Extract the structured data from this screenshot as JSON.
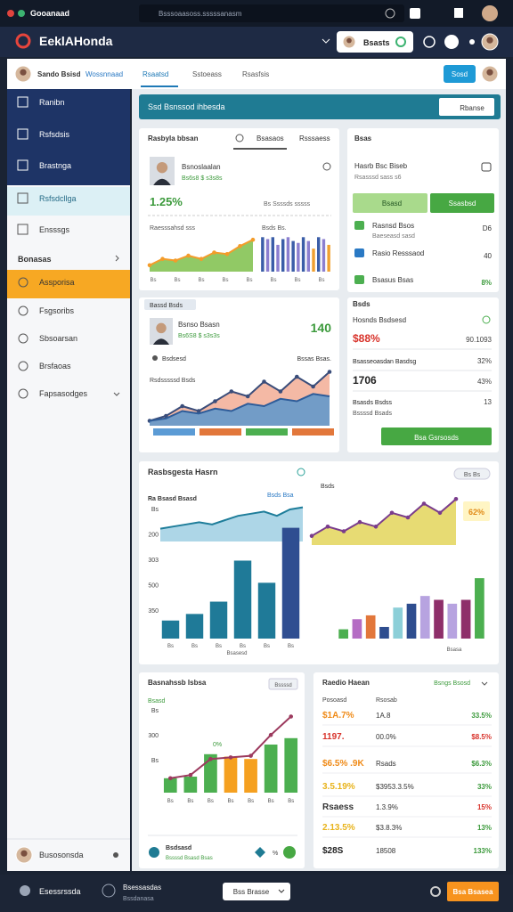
{
  "browser": {
    "tab": "Gooanaad",
    "url": "Bsssoaasoss.sssssanasm"
  },
  "header": {
    "logo": "EeklAHonda",
    "button": "Bsasts"
  },
  "subheader": {
    "user": "Sando Bsisd",
    "user_tag": "Wossnnaad",
    "tabs": [
      "Rsaatsd",
      "Sstoeass",
      "Rsasfsis"
    ],
    "button": "Sosd"
  },
  "sidebar": {
    "items": [
      "Ranibn",
      "Rsfsdsis",
      "Brastnga",
      "Rsfsdcllga",
      "Ensssgs"
    ],
    "section": "Bonasas",
    "sub_items": [
      "Assporisa",
      "Fsgsoribs",
      "Sbsoarsan",
      "Brsfaoas",
      "Fapsasodges"
    ],
    "user": "Busosonsda"
  },
  "search": {
    "text": "Ssd Bsnssod ihbesda",
    "button": "Rbanse"
  },
  "card1": {
    "title": "Rasbyla bbsan",
    "tabs": [
      "Bsasaos",
      "Rsssaess"
    ],
    "name": "Bsnoslaalan",
    "sub": "Bs6s8 $ s3s8s",
    "stat": "1.25%",
    "meta": "Bs Ssssds sssss",
    "chart_label": "Raesssahsd sss",
    "bar_label": "Bsds Bs.",
    "x_labels": [
      "Bs",
      "Bs",
      "Bs",
      "Bs",
      "Bs",
      "Bs",
      "Bs",
      "Bs"
    ],
    "line_chart": {
      "values": [
        2,
        4,
        3.5,
        5,
        4,
        6,
        5.5,
        8,
        10
      ],
      "ylim": [
        0,
        12
      ],
      "color": "#f39c2b",
      "fill": "#7ec04a"
    },
    "bar_chart": {
      "values": [
        9,
        8.5,
        9,
        7,
        8.5,
        9,
        8,
        7.5,
        9,
        8,
        6,
        9,
        8.5,
        7
      ],
      "ylim": [
        0,
        10
      ],
      "colors": [
        "#3b5ea8",
        "#8c7fd0",
        "#3b5ea8",
        "#8c7fd0",
        "#3b5ea8",
        "#8c7fd0",
        "#3b5ea8",
        "#8c7fd0",
        "#3b5ea8",
        "#8c7fd0",
        "#f0a030",
        "#3b5ea8",
        "#8c7fd0",
        "#f0a030"
      ]
    }
  },
  "side1": {
    "title": "Bsas",
    "heading": "Hasrb Bsc Biseb",
    "sub": "Rsasssd sass s6",
    "buttons": [
      "Bsasd",
      "Ssasbsd"
    ],
    "items": [
      {
        "label": "Rasnsd Bsos",
        "sub": "Baeseasd sasd",
        "value": "D6"
      },
      {
        "label": "Rasio Resssaod",
        "value": "40"
      },
      {
        "label": "Bsasus Bsas",
        "value": "8%"
      }
    ]
  },
  "card2": {
    "tab": "Bassd Bsds",
    "name": "Bsnso Bsasn",
    "sub": "Bs6S8 $ s3s3s",
    "stat": "140",
    "label_left": "Bsdsesd",
    "label_right": "Bssas Bsas.",
    "chart_label": "Rsdsssssd Bsds",
    "area_chart": {
      "ylim": [
        0,
        12
      ],
      "series": [
        {
          "values": [
            1,
            2,
            4,
            3,
            5,
            7,
            6,
            9,
            7,
            10,
            8,
            11
          ],
          "color": "#3a4d7a",
          "fill": "#f2ad95"
        },
        {
          "values": [
            1,
            1.5,
            3,
            2.5,
            3.5,
            3,
            4.5,
            4,
            5.5,
            5,
            6.5,
            6
          ],
          "color": "#2e5c99",
          "fill": "#5a96cc"
        }
      ]
    },
    "legend_colors": [
      "#5b9bd5",
      "#e2773b",
      "#4caf50",
      "#e2773b"
    ]
  },
  "side2": {
    "title": "Bsds",
    "heading": "Hosnds Bsdsesd",
    "rows": [
      [
        "$88%",
        "90.1093"
      ],
      [
        "Bsasseoasdan Basdsg",
        "32%"
      ],
      [
        "1706",
        "43%"
      ],
      [
        "Bsasds Bsdss",
        "13"
      ]
    ],
    "row_sub": "Bssssd Bsads",
    "button": "Bsa Gsrsosds"
  },
  "card3": {
    "title": "Rasbsgesta Hasrn",
    "left_title": "Ra Bsasd Bsasd",
    "left_tag": "Bsds Bsa",
    "y_labels": [
      "Bs",
      "200",
      "303",
      "500",
      "350"
    ],
    "x_labels": [
      "Bs",
      "Bs",
      "Bs",
      "Bs",
      "Bs",
      "Bs"
    ],
    "x_caption": "Bsasesd",
    "line": {
      "values": [
        3,
        3.5,
        4,
        4.5,
        4,
        5,
        6,
        6.5,
        7,
        6,
        7.5,
        8
      ],
      "ylim": [
        0,
        10
      ],
      "color": "#1e7d9a",
      "fill": "#9fcfe3"
    },
    "bars": {
      "values": [
        22,
        30,
        45,
        95,
        68,
        135
      ],
      "ylim": [
        0,
        140
      ],
      "colors": [
        "#1f7a98",
        "#1f7a98",
        "#1f7a98",
        "#1f7a98",
        "#1f7a98",
        "#2f4e91"
      ]
    },
    "right_title": "Bsds",
    "right_stat": "62%",
    "right_caption": "Bsasa",
    "bar_tag": "Bs Bs",
    "right_line": {
      "values": [
        2,
        4,
        3,
        5,
        4,
        7,
        6,
        9,
        7,
        10
      ],
      "ylim": [
        0,
        12
      ],
      "color": "#7a3c8c",
      "fill": "#e3d55a"
    },
    "right_bars": {
      "values": [
        12,
        25,
        30,
        15,
        40,
        45,
        55,
        50,
        45,
        50,
        78
      ],
      "ylim": [
        0,
        100
      ],
      "colors": [
        "#4caf50",
        "#b56cc4",
        "#e2773b",
        "#2e4d8f",
        "#8ccfd8",
        "#2e4d8f",
        "#b7a3e0",
        "#8e2f6a",
        "#b7a3e0",
        "#8e2f6a",
        "#4caf50"
      ]
    }
  },
  "card4": {
    "title": "Basnahssb Isbsa",
    "tag": "Bssssd",
    "chart_label": "Bsasd",
    "y_labels": [
      "Bs",
      "300",
      "Bs"
    ],
    "x_labels": [
      "Bs",
      "Bs",
      "Bs",
      "Bs",
      "Bs",
      "Bs",
      "Bs"
    ],
    "bar_label": "0%",
    "bars": {
      "values": [
        18,
        20,
        48,
        45,
        42,
        60,
        68
      ],
      "ylim": [
        0,
        100
      ],
      "colors": [
        "#4caf50",
        "#4caf50",
        "#4caf50",
        "#f5a020",
        "#f5a020",
        "#4caf50",
        "#4caf50"
      ]
    },
    "line": {
      "values": [
        18,
        22,
        42,
        44,
        46,
        72,
        95
      ],
      "ylim": [
        0,
        100
      ],
      "color": "#9c3a5e"
    },
    "footer_title": "Bsdsasd",
    "footer_sub": "Bssssd Bsasd Bsas",
    "footer_value": "%"
  },
  "card5": {
    "title": "Raedio Haean",
    "tag": "Bsngs Bsosd",
    "col_labels": [
      "Posoasd",
      "Rsosab"
    ],
    "rows": [
      [
        "$1A.7%",
        "1A.8",
        "33.5%"
      ],
      [
        "1197.",
        "00.0%",
        "$8.5%"
      ],
      [
        "$6.5% .9K",
        "Rsads",
        "$6.3%"
      ],
      [
        "3.5.19%",
        "$3953.3.5%",
        "33%"
      ],
      [
        "Rsaess",
        "1.3.9%",
        "15%"
      ],
      [
        "2.13.5%",
        "$3.8.3%",
        "13%"
      ],
      [
        "$28S",
        "18508",
        "133%"
      ]
    ],
    "col1_colors": [
      "#ef8a17",
      "#d8322a",
      "#ef8a17",
      "#e8b31b",
      "#333333",
      "#e8b31b",
      "#222222"
    ],
    "col3_colors": [
      "#3c9a3c",
      "#d8322a",
      "#3c9a3c",
      "#3c9a3c",
      "#d8322a",
      "#3c9a3c",
      "#3c9a3c"
    ]
  },
  "footer": {
    "user": "Esessrssda",
    "item": "Bsessasdas",
    "item_sub": "Bssdanasa",
    "select": "Bss Brasse",
    "button": "Bsa Bsasea"
  }
}
